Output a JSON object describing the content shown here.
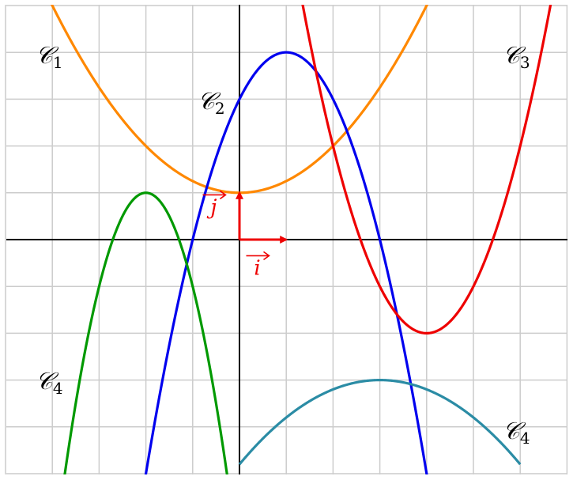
{
  "chart_data": {
    "type": "line",
    "grid": true,
    "xlim": [
      -5,
      7
    ],
    "ylim": [
      -5,
      5
    ],
    "curves": [
      {
        "label": "𝒞",
        "index": "1",
        "color": "#ff8800",
        "formula": "x^2/4 + 1",
        "domain": [
          -5,
          7
        ]
      },
      {
        "label": "𝒞",
        "index": "2",
        "color": "#0000ee",
        "formula": "-(x-1)^2 + 4",
        "domain": [
          -2.1,
          4.1
        ]
      },
      {
        "label": "𝒞",
        "index": "3",
        "color": "#ee0000",
        "formula": "(x-4)^2 - 2",
        "domain": [
          1,
          7
        ]
      },
      {
        "label": "𝒞",
        "index": "4",
        "color": "#009900",
        "formula": "-2(x+2)^2 + 1",
        "domain": [
          -3.8,
          -0.2
        ]
      },
      {
        "label": "𝒞",
        "index": "4",
        "color": "#2b8ca5",
        "formula": "-(x-3)^2/5 - 3",
        "domain": [
          0,
          6
        ]
      }
    ],
    "vectors": [
      {
        "label": "i",
        "color": "#ee0000",
        "from": [
          0,
          0
        ],
        "to": [
          1,
          0
        ]
      },
      {
        "label": "j",
        "color": "#ee0000",
        "from": [
          0,
          0
        ],
        "to": [
          0,
          1
        ]
      }
    ]
  }
}
